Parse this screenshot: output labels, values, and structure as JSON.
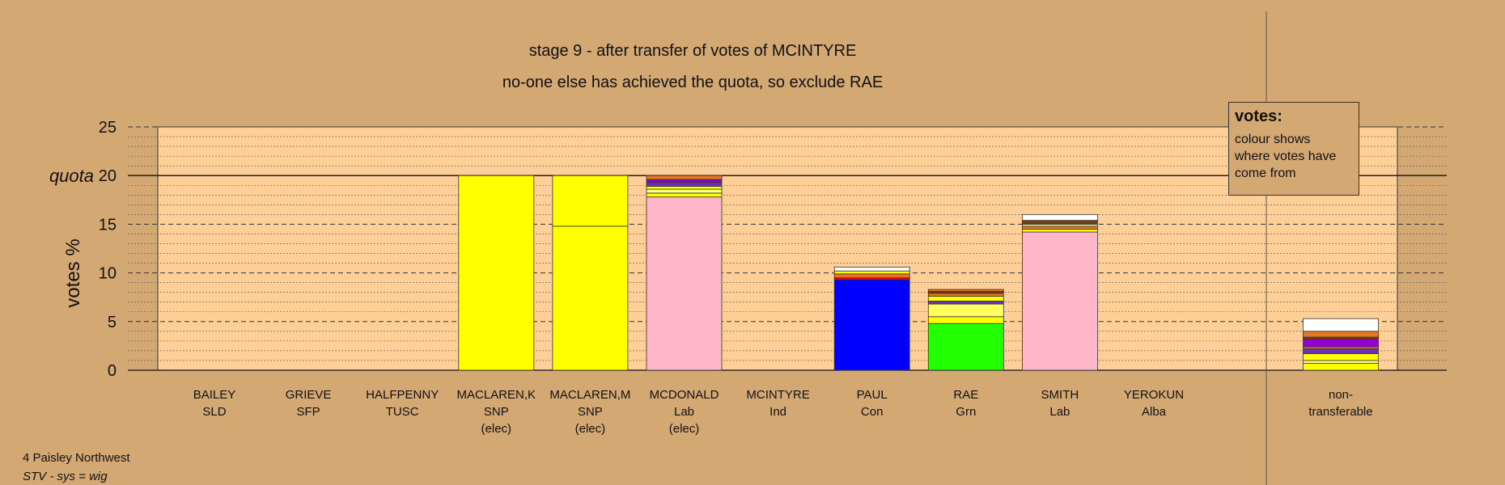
{
  "titles": {
    "line1": "stage 9 - after transfer of votes of MCINTYRE",
    "line2": "no-one else has achieved the quota, so exclude RAE"
  },
  "legend": {
    "heading": "votes:",
    "text": "colour shows where votes have come from"
  },
  "footer": {
    "ward": "4 Paisley Northwest",
    "system": "STV - sys = wig"
  },
  "chart_data": {
    "type": "bar",
    "stacked": true,
    "ylabel": "votes %",
    "ylim": [
      0,
      25
    ],
    "yticks": [
      0,
      5,
      10,
      15,
      20,
      25
    ],
    "quota": {
      "value": 20,
      "label": "quota"
    },
    "grid": true,
    "legend_placement": "top-right",
    "candidates": [
      {
        "name": "BAILEY",
        "party": "SLD",
        "status": "",
        "segments": []
      },
      {
        "name": "GRIEVE",
        "party": "SFP",
        "status": "",
        "segments": []
      },
      {
        "name": "HALFPENNY",
        "party": "TUSC",
        "status": "",
        "segments": []
      },
      {
        "name": "MACLAREN,K",
        "party": "SNP",
        "status": "(elec)",
        "segments": [
          {
            "value": 20.0,
            "color": "#ffff00"
          }
        ]
      },
      {
        "name": "MACLAREN,M",
        "party": "SNP",
        "status": "(elec)",
        "segments": [
          {
            "value": 14.8,
            "color": "#ffff00"
          },
          {
            "value": 5.2,
            "color": "#ffff00"
          }
        ]
      },
      {
        "name": "MCDONALD",
        "party": "Lab",
        "status": "(elec)",
        "segments": [
          {
            "value": 17.8,
            "color": "#ffb6c8"
          },
          {
            "value": 0.4,
            "color": "#ffff00"
          },
          {
            "value": 0.4,
            "color": "#ffff80"
          },
          {
            "value": 0.3,
            "color": "#ffff00"
          },
          {
            "value": 0.4,
            "color": "#6b2fbf"
          },
          {
            "value": 0.3,
            "color": "#9400d3"
          },
          {
            "value": 0.4,
            "color": "#e87722"
          }
        ]
      },
      {
        "name": "MCINTYRE",
        "party": "Ind",
        "status": "",
        "segments": []
      },
      {
        "name": "PAUL",
        "party": "Con",
        "status": "",
        "segments": [
          {
            "value": 9.3,
            "color": "#0000ff"
          },
          {
            "value": 0.2,
            "color": "#ff0000"
          },
          {
            "value": 0.4,
            "color": "#e87722"
          },
          {
            "value": 0.3,
            "color": "#ffff00"
          },
          {
            "value": 0.4,
            "color": "#ffffff"
          }
        ]
      },
      {
        "name": "RAE",
        "party": "Grn",
        "status": "",
        "segments": [
          {
            "value": 4.8,
            "color": "#22ff00"
          },
          {
            "value": 0.7,
            "color": "#ffff00"
          },
          {
            "value": 1.3,
            "color": "#ffff60"
          },
          {
            "value": 0.3,
            "color": "#6b2fbf"
          },
          {
            "value": 0.5,
            "color": "#ffff00"
          },
          {
            "value": 0.3,
            "color": "#e87722"
          },
          {
            "value": 0.2,
            "color": "#7a3b10"
          },
          {
            "value": 0.2,
            "color": "#e87722"
          }
        ]
      },
      {
        "name": "SMITH",
        "party": "Lab",
        "status": "",
        "segments": [
          {
            "value": 14.2,
            "color": "#ffb6c8"
          },
          {
            "value": 0.3,
            "color": "#ffff00"
          },
          {
            "value": 0.3,
            "color": "#e87722"
          },
          {
            "value": 0.2,
            "color": "#ffff80"
          },
          {
            "value": 0.3,
            "color": "#7a3b10"
          },
          {
            "value": 0.1,
            "color": "#e87722"
          },
          {
            "value": 0.6,
            "color": "#ffffff"
          }
        ]
      },
      {
        "name": "YEROKUN",
        "party": "Alba",
        "status": "",
        "segments": []
      }
    ],
    "nontransferable": {
      "label_line1": "non-",
      "label_line2": "transferable",
      "segments": [
        {
          "value": 0.7,
          "color": "#ffff00"
        },
        {
          "value": 0.3,
          "color": "#ffff80"
        },
        {
          "value": 0.7,
          "color": "#ffff00"
        },
        {
          "value": 0.5,
          "color": "#6b2fbf"
        },
        {
          "value": 0.2,
          "color": "#e87722"
        },
        {
          "value": 0.8,
          "color": "#9400d3"
        },
        {
          "value": 0.2,
          "color": "#7a3b10"
        },
        {
          "value": 0.6,
          "color": "#e87722"
        },
        {
          "value": 1.3,
          "color": "#ffffff"
        }
      ]
    }
  }
}
